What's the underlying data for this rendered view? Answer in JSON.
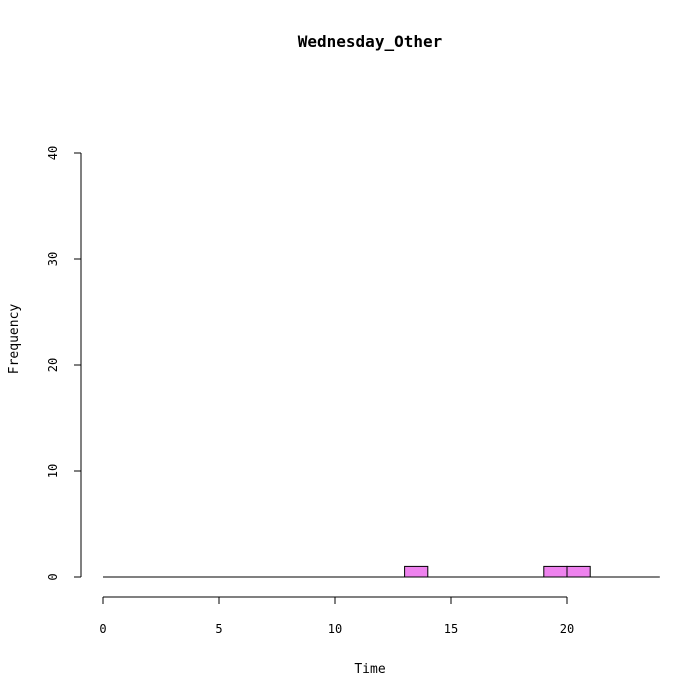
{
  "chart_data": {
    "type": "bar",
    "title": "Wednesday_Other",
    "xlabel": "Time",
    "ylabel": "Frequency",
    "xlim": [
      0,
      24
    ],
    "ylim": [
      0,
      40
    ],
    "x_ticks": [
      0,
      5,
      10,
      15,
      20
    ],
    "y_ticks": [
      0,
      10,
      20,
      30,
      40
    ],
    "bin_width": 1,
    "bins": [
      {
        "start": 0,
        "count": 0
      },
      {
        "start": 1,
        "count": 0
      },
      {
        "start": 2,
        "count": 0
      },
      {
        "start": 3,
        "count": 0
      },
      {
        "start": 4,
        "count": 0
      },
      {
        "start": 5,
        "count": 0
      },
      {
        "start": 6,
        "count": 0
      },
      {
        "start": 7,
        "count": 0
      },
      {
        "start": 8,
        "count": 0
      },
      {
        "start": 9,
        "count": 0
      },
      {
        "start": 10,
        "count": 0
      },
      {
        "start": 11,
        "count": 0
      },
      {
        "start": 12,
        "count": 0
      },
      {
        "start": 13,
        "count": 1
      },
      {
        "start": 14,
        "count": 0
      },
      {
        "start": 15,
        "count": 0
      },
      {
        "start": 16,
        "count": 0
      },
      {
        "start": 17,
        "count": 0
      },
      {
        "start": 18,
        "count": 0
      },
      {
        "start": 19,
        "count": 1
      },
      {
        "start": 20,
        "count": 1
      },
      {
        "start": 21,
        "count": 0
      },
      {
        "start": 22,
        "count": 0
      },
      {
        "start": 23,
        "count": 0
      }
    ],
    "bar_color": "#ee82ee",
    "grid": false
  }
}
